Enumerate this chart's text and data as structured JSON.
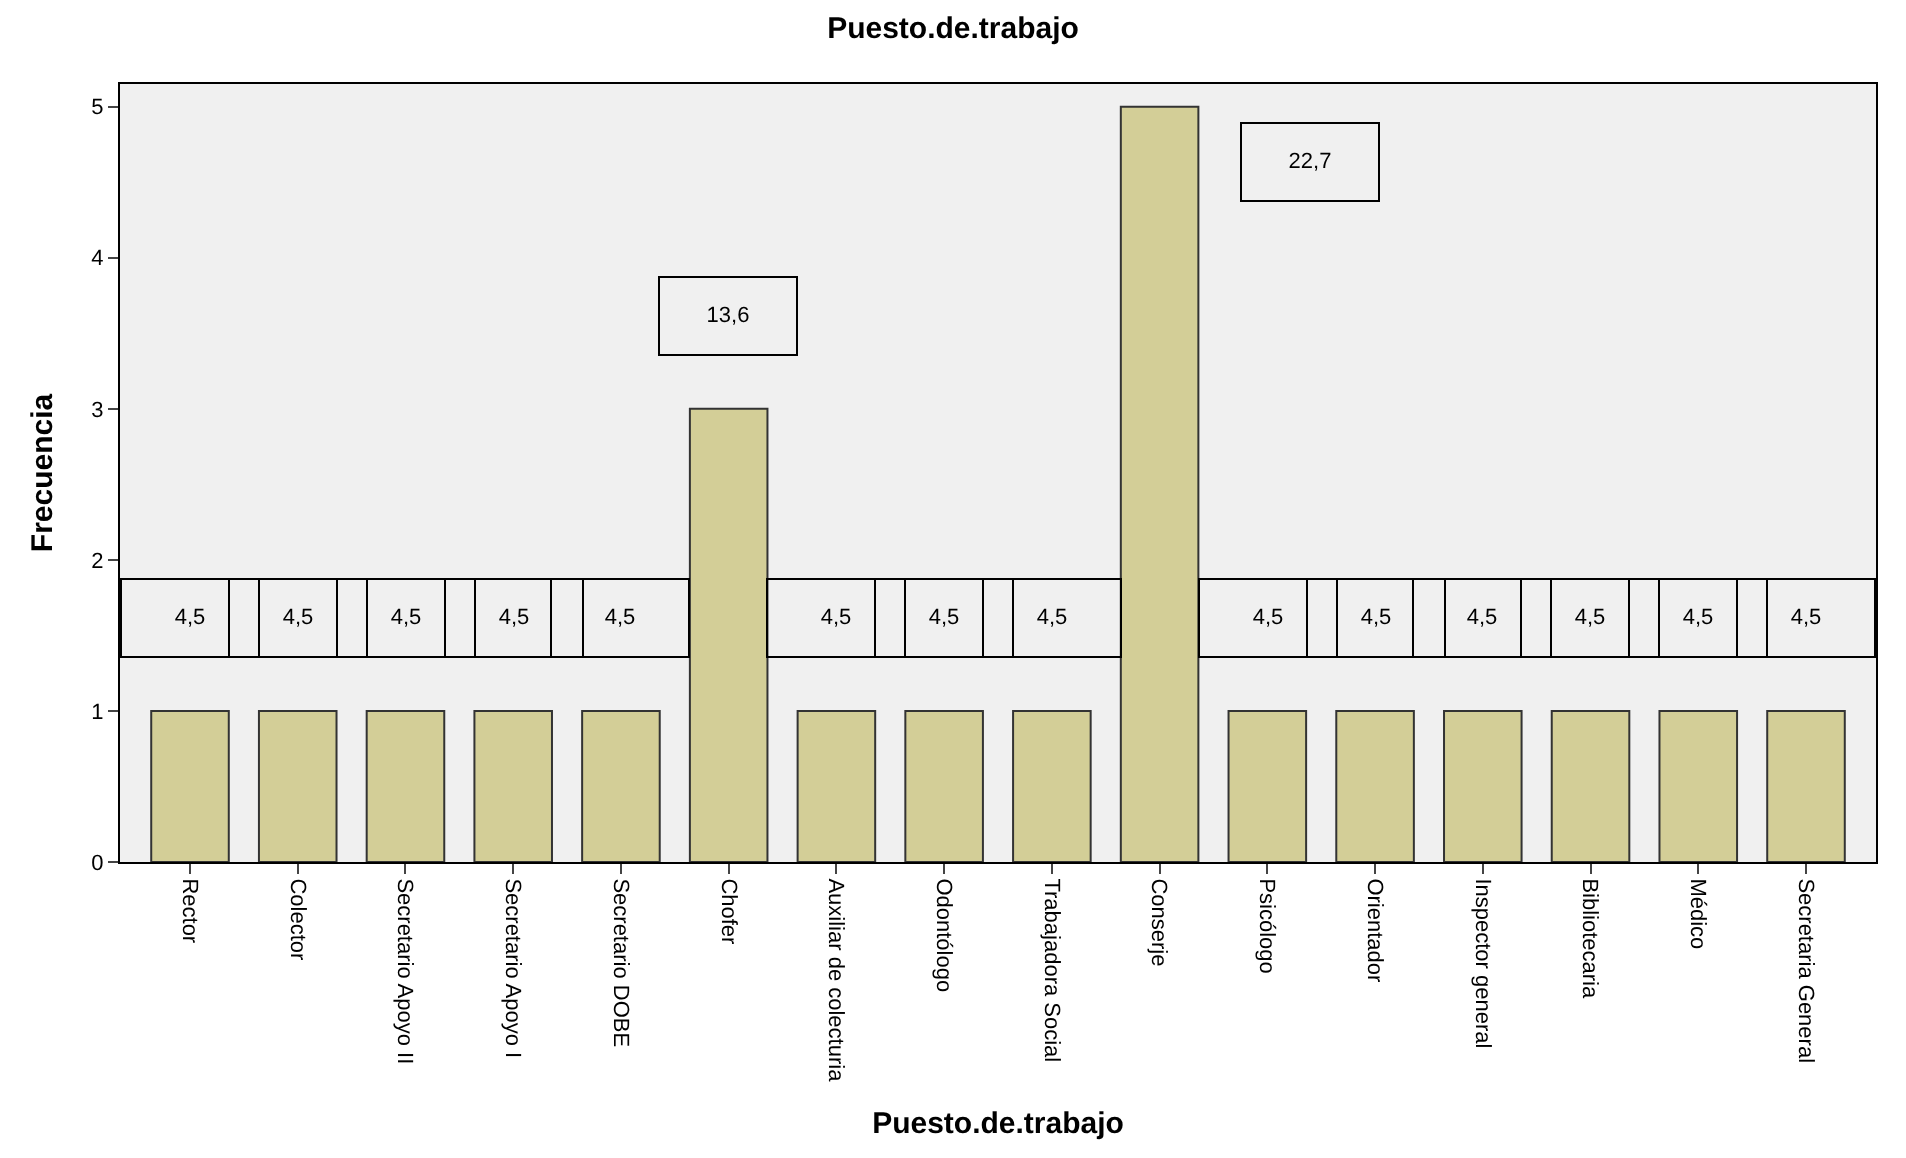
{
  "chart_data": {
    "type": "bar",
    "title": "Puesto.de.trabajo",
    "xlabel": "Puesto.de.trabajo",
    "ylabel": "Frecuencia",
    "categories": [
      "Rector",
      "Colector",
      "Secretario Apoyo II",
      "Secretario Apoyo I",
      "Secretario DOBE",
      "Chofer",
      "Auxiliar de colecturia",
      "Odontólogo",
      "Trabajadora Social",
      "Conserje",
      "Psicólogo",
      "Orientador",
      "Inspector general",
      "Bibliotecaria",
      "Médico",
      "Secretaria General"
    ],
    "values": [
      1,
      1,
      1,
      1,
      1,
      3,
      1,
      1,
      1,
      5,
      1,
      1,
      1,
      1,
      1,
      1
    ],
    "annotations": [
      "4,5",
      "4,5",
      "4,5",
      "4,5",
      "4,5",
      "13,6",
      "4,5",
      "4,5",
      "4,5",
      "22,7",
      "4,5",
      "4,5",
      "4,5",
      "4,5",
      "4,5",
      "4,5"
    ],
    "color": "#d3ce97",
    "ylim": [
      0,
      5.15
    ],
    "yticks": [
      0,
      1,
      2,
      3,
      4,
      5
    ],
    "grid": false
  }
}
